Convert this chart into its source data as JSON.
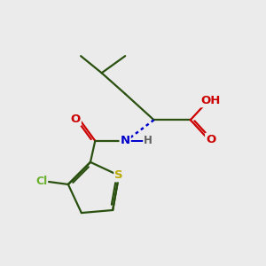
{
  "bg_color": "#ebebeb",
  "bond_color": "#2a5010",
  "bond_width": 1.6,
  "atom_colors": {
    "O": "#cc0000",
    "H": "#606060",
    "N": "#0000cc",
    "S": "#bbaa00",
    "Cl": "#6ab030",
    "C": "#2a5010"
  },
  "font_size": 9.5,
  "font_size_h": 8.5,
  "font_size_cl": 9.0
}
